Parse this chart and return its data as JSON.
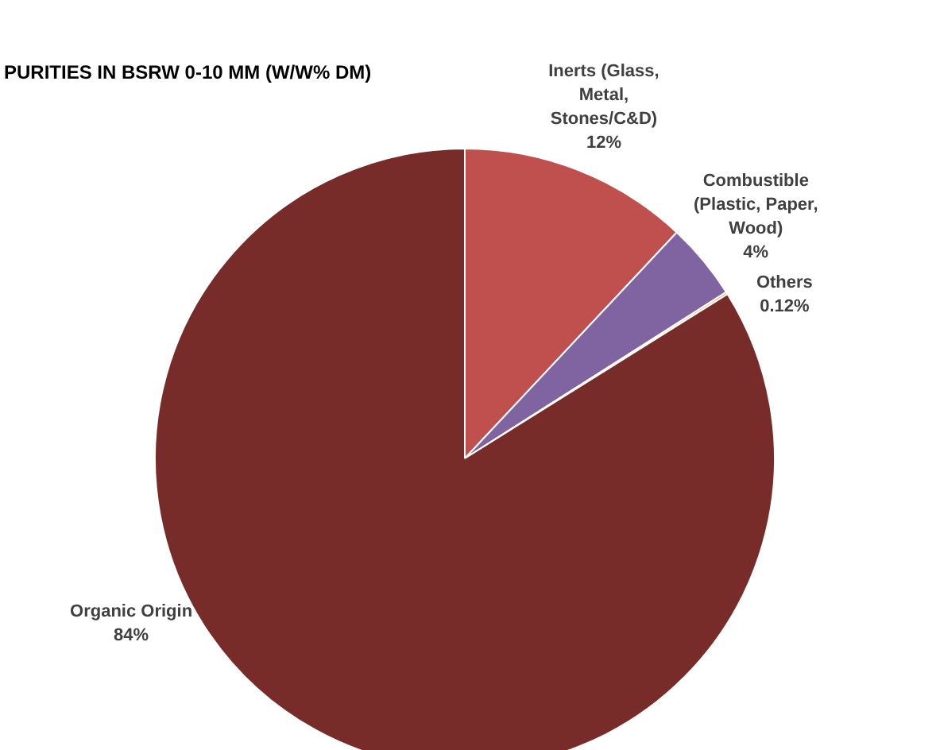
{
  "chart_data": {
    "type": "pie",
    "title": "PURITIES IN BSRW 0-10 MM (W/W% DM)",
    "categories": [
      "Inerts (Glass,\nMetal,\nStones/C&D)",
      "Combustible\n(Plastic, Paper,\nWood)",
      "Others",
      "Organic Origin"
    ],
    "values": [
      12,
      4,
      0.12,
      84
    ],
    "colors": [
      "#c0504d",
      "#8064a2",
      "#f79646",
      "#772c2a"
    ],
    "value_labels": [
      "12%",
      "4%",
      "0.12%",
      "84%"
    ]
  }
}
